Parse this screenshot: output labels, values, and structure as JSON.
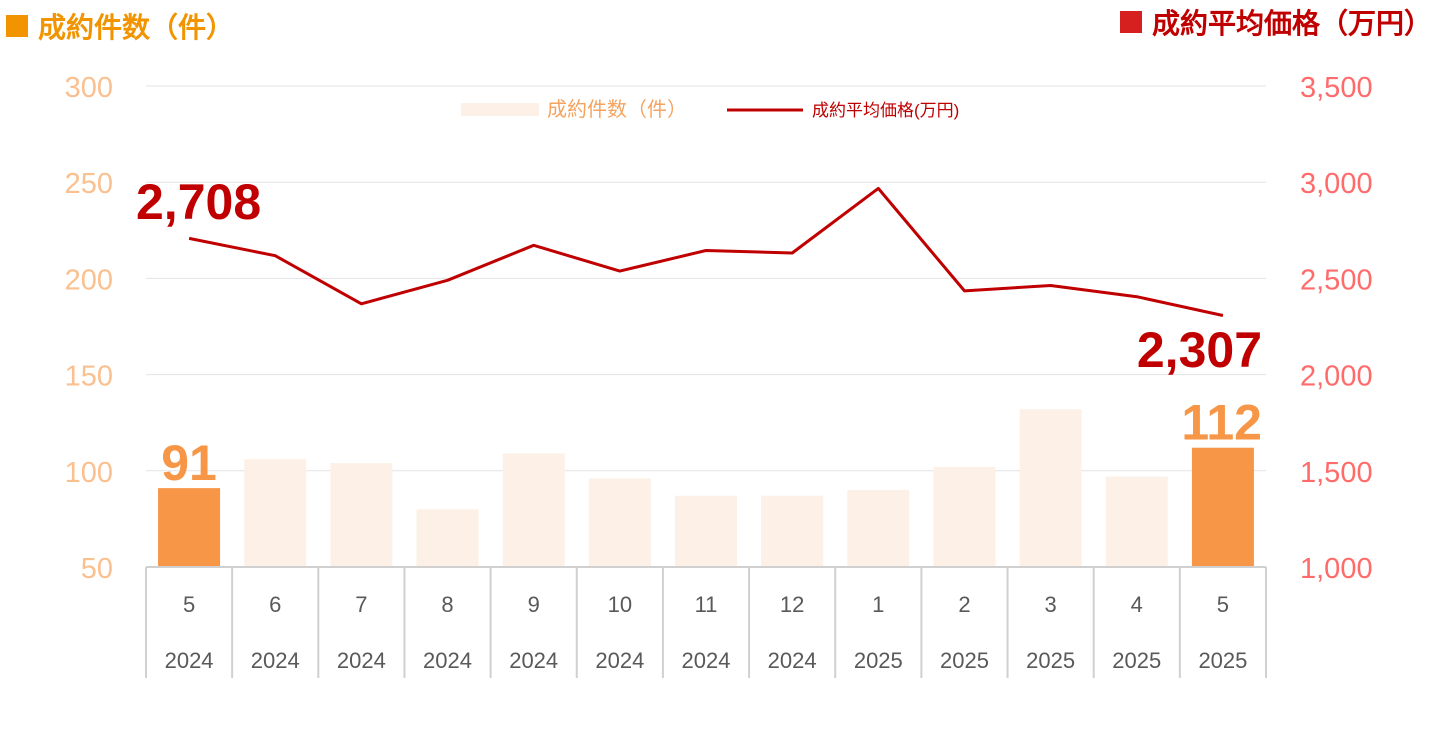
{
  "headers": {
    "left_axis_title": "成約件数（件）",
    "right_axis_title": "成約平均価格（万円）"
  },
  "colors": {
    "bar_highlight": "#f79646",
    "bar_normal": "#fdf0e6",
    "line": "#c00000",
    "left_tick": "#fac090",
    "right_tick": "#ff6b6b",
    "title_left": "#f29400",
    "title_right": "#c00000"
  },
  "chart_data": {
    "type": "bar",
    "categories": [
      "5",
      "6",
      "7",
      "8",
      "9",
      "10",
      "11",
      "12",
      "1",
      "2",
      "3",
      "4",
      "5"
    ],
    "years": [
      "2024",
      "2024",
      "2024",
      "2024",
      "2024",
      "2024",
      "2024",
      "2024",
      "2025",
      "2025",
      "2025",
      "2025",
      "2025"
    ],
    "series": [
      {
        "name": "成約件数(件)",
        "type": "bar",
        "axis": "left",
        "values": [
          91,
          106,
          104,
          80,
          109,
          96,
          87,
          87,
          90,
          102,
          132,
          97,
          112
        ],
        "highlight_indices": [
          0,
          12
        ]
      },
      {
        "name": "成約平均価格(万円)",
        "type": "line",
        "axis": "right",
        "values": [
          2708,
          2618,
          2368,
          2490,
          2672,
          2538,
          2645,
          2632,
          2968,
          2435,
          2463,
          2405,
          2307
        ]
      }
    ],
    "left_axis": {
      "ylim": [
        50,
        300
      ],
      "ticks": [
        "50",
        "100",
        "150",
        "200",
        "250",
        "300"
      ]
    },
    "right_axis": {
      "ylim": [
        1000,
        3500
      ],
      "ticks": [
        "1,000",
        "1,500",
        "2,000",
        "2,500",
        "3,000",
        "3,500"
      ]
    },
    "annotations": {
      "line_first": "2,708",
      "line_last": "2,307",
      "bar_first": "91",
      "bar_last": "112"
    },
    "legend": {
      "position": "top-center",
      "bar_label": "成約件数（件）",
      "line_label": "成約平均価格(万円)"
    },
    "grid": true
  }
}
